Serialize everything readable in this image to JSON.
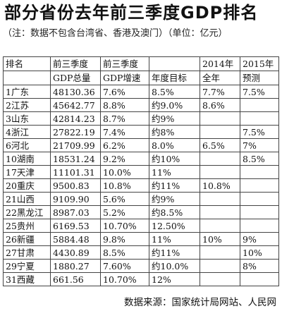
{
  "title": "部分省份去年前三季度GDP排名",
  "note": "（注：数据不包含台湾省、香港及澳门）（单位：亿元）",
  "table": {
    "header_row1": [
      "排名",
      "前三季度",
      "前三季度",
      "",
      "2014年",
      "2015年"
    ],
    "header_row2": [
      "",
      "GDP总量",
      "GDP增速",
      "年度目标",
      "全年",
      "预测"
    ],
    "rows": [
      [
        "1广东",
        "48130.36",
        "7.6%",
        "8.5%",
        "7.7%",
        "7.5%"
      ],
      [
        "2江苏",
        "45642.77",
        "8.8%",
        "约9.0%",
        "8.6%",
        ""
      ],
      [
        "3山东",
        "42814.23",
        "8.7%",
        "约9%",
        "",
        ""
      ],
      [
        "4浙江",
        "27822.19",
        "7.4%",
        "约8%",
        "",
        "7.5%"
      ],
      [
        "6河北",
        "21709.99",
        "6.2%",
        "8.0%",
        "6.5%",
        "7%"
      ],
      [
        "10湖南",
        "18531.24",
        "9.2%",
        "约10%",
        "",
        "8.5%"
      ],
      [
        "17天津",
        "11101.31",
        "10.0%",
        "11%",
        "",
        ""
      ],
      [
        "20重庆",
        "9500.83",
        "10.8%",
        "约11%",
        "10.8%",
        ""
      ],
      [
        "21山西",
        "9109.90",
        "5.6%",
        "约9%",
        "",
        ""
      ],
      [
        "22黑龙江",
        "8987.03",
        "5.2%",
        "约8.5%",
        "",
        ""
      ],
      [
        "25贵州",
        "6169.53",
        "10.70%",
        "12.50%",
        "",
        ""
      ],
      [
        "26新疆",
        "5884.48",
        "9.8%",
        "11%",
        "10%",
        "9%"
      ],
      [
        "27甘肃",
        "4430.89",
        "8.5%",
        "约11%",
        "",
        "10%"
      ],
      [
        "29宁夏",
        "1880.27",
        "7.60%",
        "约10.0%",
        "",
        "8%"
      ],
      [
        "31西藏",
        "661.56",
        "10.70%",
        "12%",
        "",
        ""
      ]
    ]
  },
  "source": "数据来源：国家统计局网站、人民网"
}
